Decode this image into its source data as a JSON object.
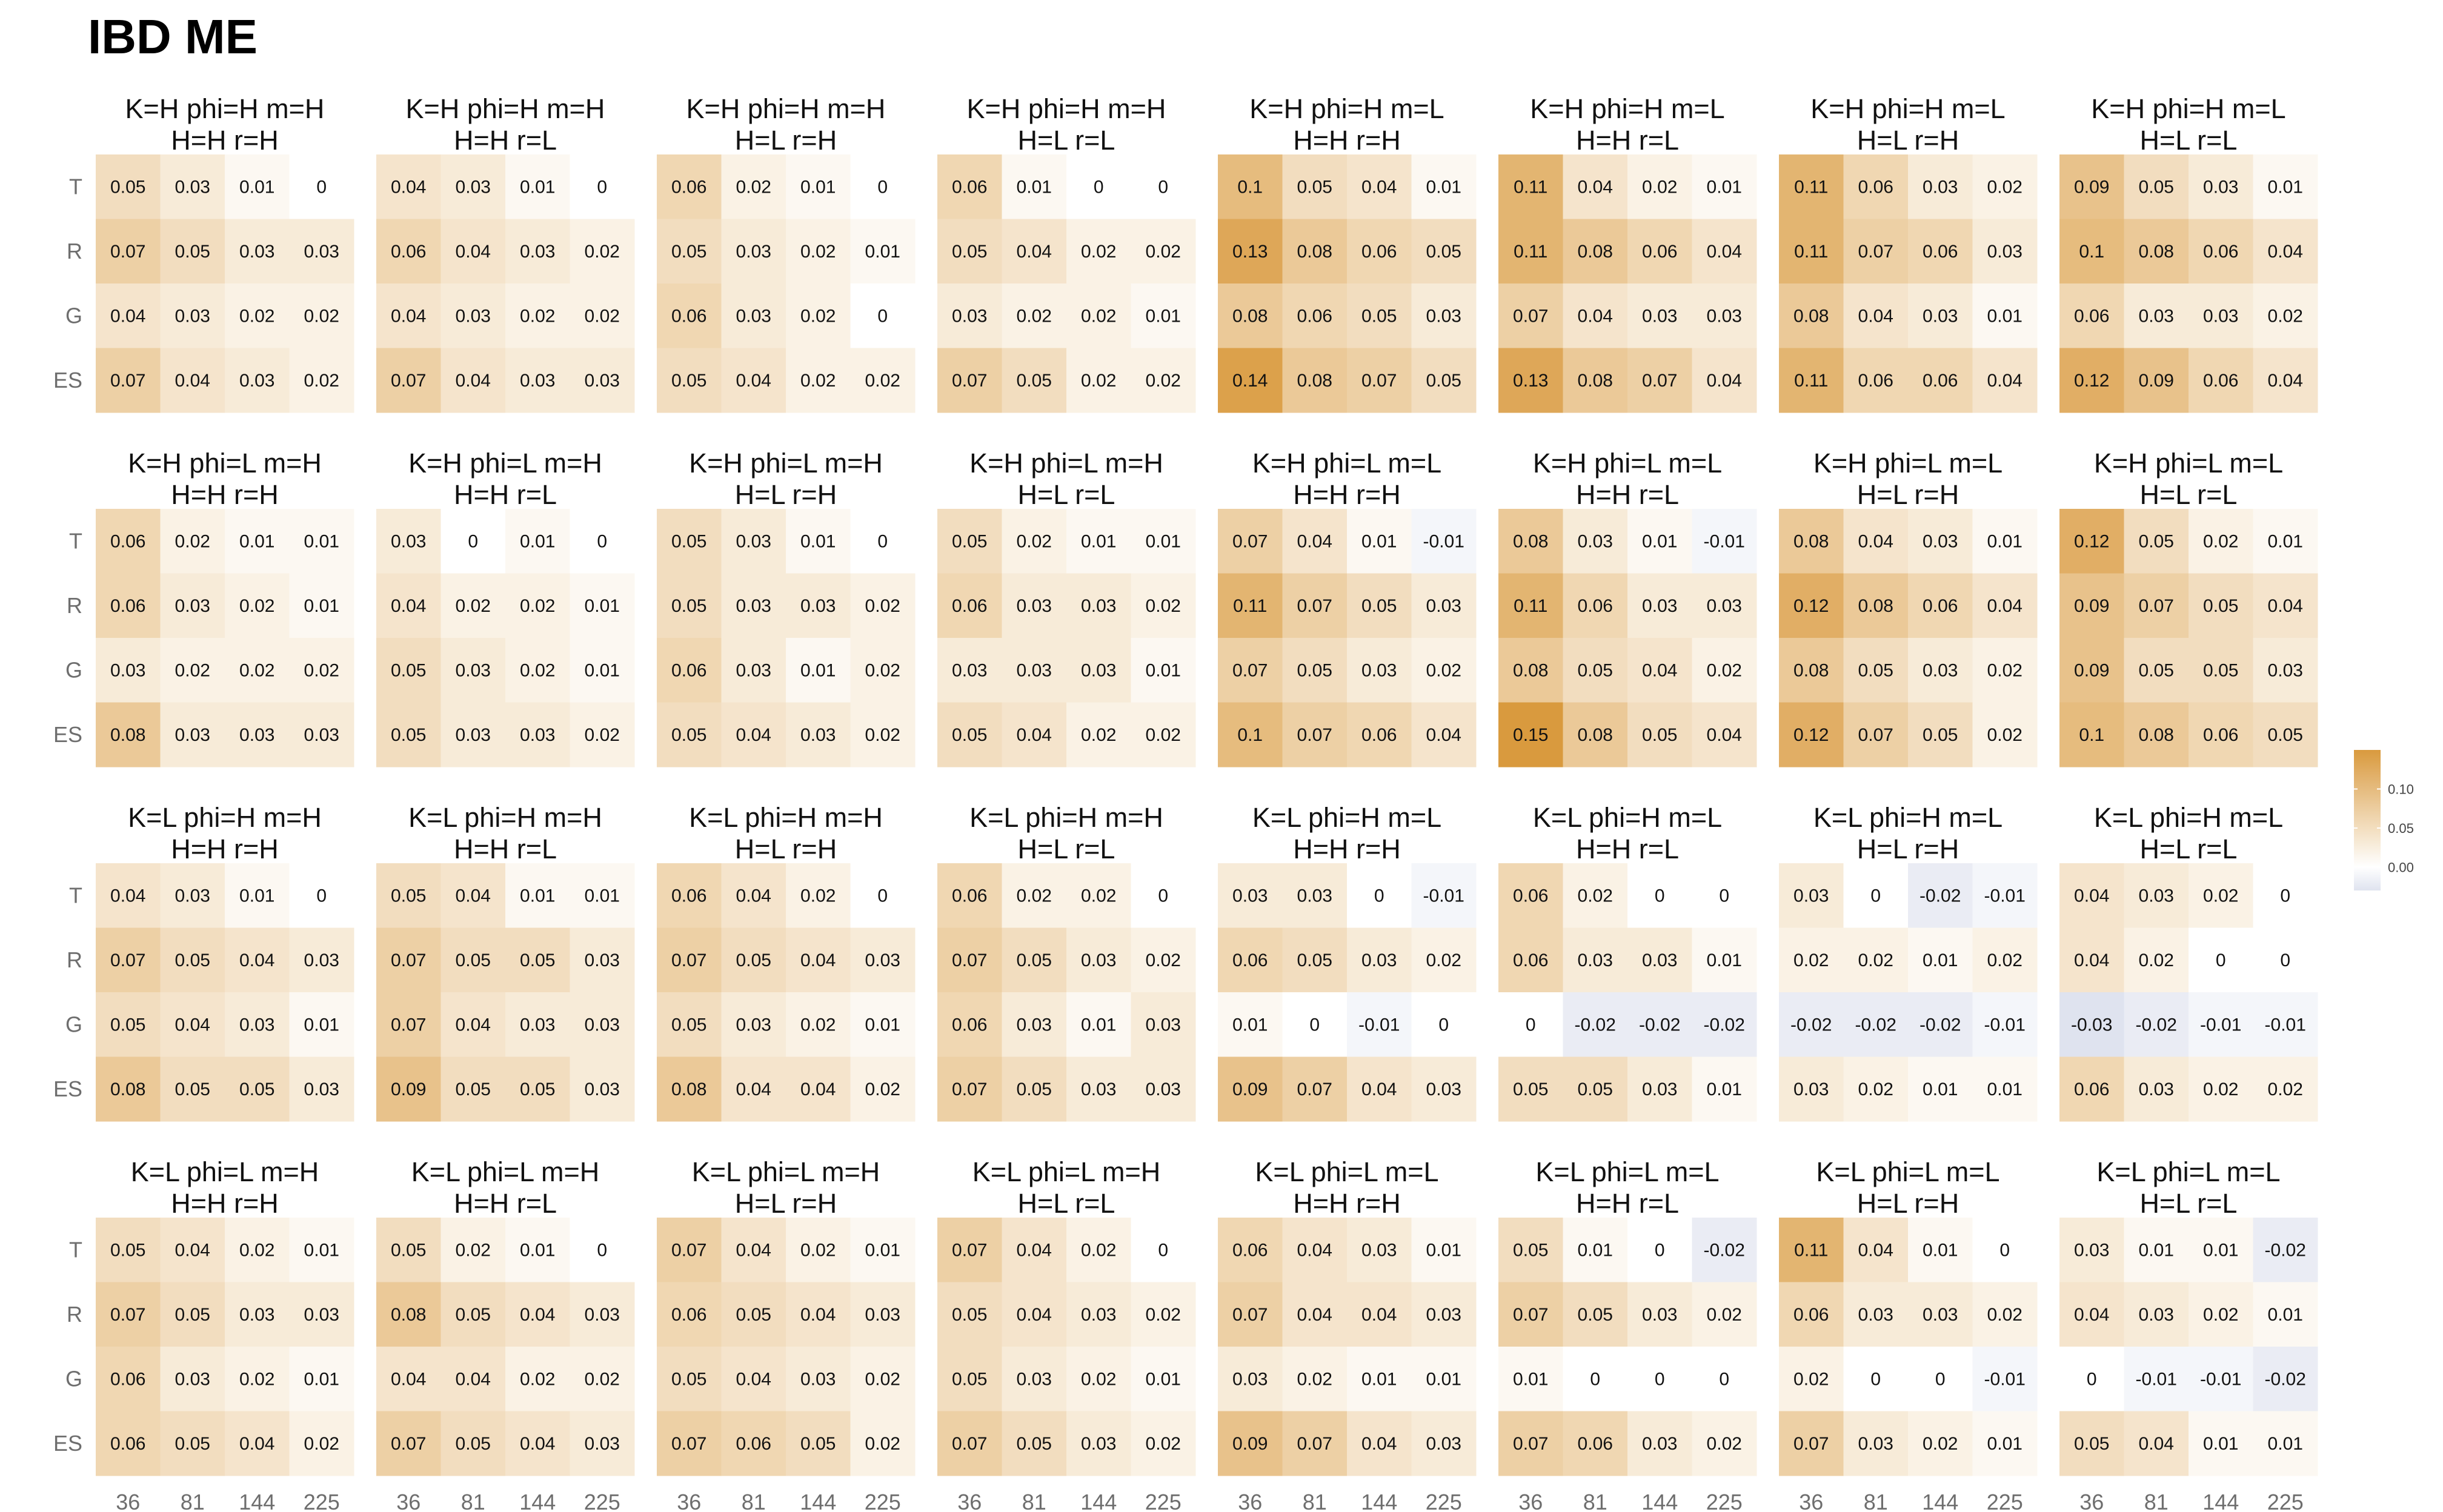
{
  "chart_data": {
    "type": "heatmap",
    "title": "IBD ME",
    "row_labels": [
      "T",
      "R",
      "G",
      "ES"
    ],
    "col_labels": [
      "36",
      "81",
      "144",
      "225"
    ],
    "color_scale": {
      "low": "#dfe3ef",
      "mid": "#ffffff",
      "high": "#d99a3e",
      "domain": [
        -0.03,
        0,
        0.15
      ]
    },
    "legend": {
      "ticks": [
        "0.10",
        "0.05",
        "0.00"
      ],
      "tick_values": [
        0.1,
        0.05,
        0.0
      ],
      "position": "right"
    },
    "facets": [
      {
        "title": [
          "K=H phi=H m=H",
          "H=H r=H"
        ],
        "values": [
          [
            0.05,
            0.03,
            0.01,
            0
          ],
          [
            0.07,
            0.05,
            0.03,
            0.03
          ],
          [
            0.04,
            0.03,
            0.02,
            0.02
          ],
          [
            0.07,
            0.04,
            0.03,
            0.02
          ]
        ]
      },
      {
        "title": [
          "K=H phi=H m=H",
          "H=H r=L"
        ],
        "values": [
          [
            0.04,
            0.03,
            0.01,
            0
          ],
          [
            0.06,
            0.04,
            0.03,
            0.02
          ],
          [
            0.04,
            0.03,
            0.02,
            0.02
          ],
          [
            0.07,
            0.04,
            0.03,
            0.03
          ]
        ]
      },
      {
        "title": [
          "K=H phi=H m=H",
          "H=L r=H"
        ],
        "values": [
          [
            0.06,
            0.02,
            0.01,
            0
          ],
          [
            0.05,
            0.03,
            0.02,
            0.01
          ],
          [
            0.06,
            0.03,
            0.02,
            0
          ],
          [
            0.05,
            0.04,
            0.02,
            0.02
          ]
        ]
      },
      {
        "title": [
          "K=H phi=H m=H",
          "H=L r=L"
        ],
        "values": [
          [
            0.06,
            0.01,
            0,
            0
          ],
          [
            0.05,
            0.04,
            0.02,
            0.02
          ],
          [
            0.03,
            0.02,
            0.02,
            0.01
          ],
          [
            0.07,
            0.05,
            0.02,
            0.02
          ]
        ]
      },
      {
        "title": [
          "K=H phi=H m=L",
          "H=H r=H"
        ],
        "values": [
          [
            0.1,
            0.05,
            0.04,
            0.01
          ],
          [
            0.13,
            0.08,
            0.06,
            0.05
          ],
          [
            0.08,
            0.06,
            0.05,
            0.03
          ],
          [
            0.14,
            0.08,
            0.07,
            0.05
          ]
        ]
      },
      {
        "title": [
          "K=H phi=H m=L",
          "H=H r=L"
        ],
        "values": [
          [
            0.11,
            0.04,
            0.02,
            0.01
          ],
          [
            0.11,
            0.08,
            0.06,
            0.04
          ],
          [
            0.07,
            0.04,
            0.03,
            0.03
          ],
          [
            0.13,
            0.08,
            0.07,
            0.04
          ]
        ]
      },
      {
        "title": [
          "K=H phi=H m=L",
          "H=L r=H"
        ],
        "values": [
          [
            0.11,
            0.06,
            0.03,
            0.02
          ],
          [
            0.11,
            0.07,
            0.06,
            0.03
          ],
          [
            0.08,
            0.04,
            0.03,
            0.01
          ],
          [
            0.11,
            0.06,
            0.06,
            0.04
          ]
        ]
      },
      {
        "title": [
          "K=H phi=H m=L",
          "H=L r=L"
        ],
        "values": [
          [
            0.09,
            0.05,
            0.03,
            0.01
          ],
          [
            0.1,
            0.08,
            0.06,
            0.04
          ],
          [
            0.06,
            0.03,
            0.03,
            0.02
          ],
          [
            0.12,
            0.09,
            0.06,
            0.04
          ]
        ]
      },
      {
        "title": [
          "K=H phi=L m=H",
          "H=H r=H"
        ],
        "values": [
          [
            0.06,
            0.02,
            0.01,
            0.01
          ],
          [
            0.06,
            0.03,
            0.02,
            0.01
          ],
          [
            0.03,
            0.02,
            0.02,
            0.02
          ],
          [
            0.08,
            0.03,
            0.03,
            0.03
          ]
        ]
      },
      {
        "title": [
          "K=H phi=L m=H",
          "H=H r=L"
        ],
        "values": [
          [
            0.03,
            0,
            0.01,
            0
          ],
          [
            0.04,
            0.02,
            0.02,
            0.01
          ],
          [
            0.05,
            0.03,
            0.02,
            0.01
          ],
          [
            0.05,
            0.03,
            0.03,
            0.02
          ]
        ]
      },
      {
        "title": [
          "K=H phi=L m=H",
          "H=L r=H"
        ],
        "values": [
          [
            0.05,
            0.03,
            0.01,
            0
          ],
          [
            0.05,
            0.03,
            0.03,
            0.02
          ],
          [
            0.06,
            0.03,
            0.01,
            0.02
          ],
          [
            0.05,
            0.04,
            0.03,
            0.02
          ]
        ]
      },
      {
        "title": [
          "K=H phi=L m=H",
          "H=L r=L"
        ],
        "values": [
          [
            0.05,
            0.02,
            0.01,
            0.01
          ],
          [
            0.06,
            0.03,
            0.03,
            0.02
          ],
          [
            0.03,
            0.03,
            0.03,
            0.01
          ],
          [
            0.05,
            0.04,
            0.02,
            0.02
          ]
        ]
      },
      {
        "title": [
          "K=H phi=L m=L",
          "H=H r=H"
        ],
        "values": [
          [
            0.07,
            0.04,
            0.01,
            -0.01
          ],
          [
            0.11,
            0.07,
            0.05,
            0.03
          ],
          [
            0.07,
            0.05,
            0.03,
            0.02
          ],
          [
            0.1,
            0.07,
            0.06,
            0.04
          ]
        ]
      },
      {
        "title": [
          "K=H phi=L m=L",
          "H=H r=L"
        ],
        "values": [
          [
            0.08,
            0.03,
            0.01,
            -0.01
          ],
          [
            0.11,
            0.06,
            0.03,
            0.03
          ],
          [
            0.08,
            0.05,
            0.04,
            0.02
          ],
          [
            0.15,
            0.08,
            0.05,
            0.04
          ]
        ]
      },
      {
        "title": [
          "K=H phi=L m=L",
          "H=L r=H"
        ],
        "values": [
          [
            0.08,
            0.04,
            0.03,
            0.01
          ],
          [
            0.12,
            0.08,
            0.06,
            0.04
          ],
          [
            0.08,
            0.05,
            0.03,
            0.02
          ],
          [
            0.12,
            0.07,
            0.05,
            0.02
          ]
        ]
      },
      {
        "title": [
          "K=H phi=L m=L",
          "H=L r=L"
        ],
        "values": [
          [
            0.12,
            0.05,
            0.02,
            0.01
          ],
          [
            0.09,
            0.07,
            0.05,
            0.04
          ],
          [
            0.09,
            0.05,
            0.05,
            0.03
          ],
          [
            0.1,
            0.08,
            0.06,
            0.05
          ]
        ]
      },
      {
        "title": [
          "K=L phi=H m=H",
          "H=H r=H"
        ],
        "values": [
          [
            0.04,
            0.03,
            0.01,
            0
          ],
          [
            0.07,
            0.05,
            0.04,
            0.03
          ],
          [
            0.05,
            0.04,
            0.03,
            0.01
          ],
          [
            0.08,
            0.05,
            0.05,
            0.03
          ]
        ]
      },
      {
        "title": [
          "K=L phi=H m=H",
          "H=H r=L"
        ],
        "values": [
          [
            0.05,
            0.04,
            0.01,
            0.01
          ],
          [
            0.07,
            0.05,
            0.05,
            0.03
          ],
          [
            0.07,
            0.04,
            0.03,
            0.03
          ],
          [
            0.09,
            0.05,
            0.05,
            0.03
          ]
        ]
      },
      {
        "title": [
          "K=L phi=H m=H",
          "H=L r=H"
        ],
        "values": [
          [
            0.06,
            0.04,
            0.02,
            0
          ],
          [
            0.07,
            0.05,
            0.04,
            0.03
          ],
          [
            0.05,
            0.03,
            0.02,
            0.01
          ],
          [
            0.08,
            0.04,
            0.04,
            0.02
          ]
        ]
      },
      {
        "title": [
          "K=L phi=H m=H",
          "H=L r=L"
        ],
        "values": [
          [
            0.06,
            0.02,
            0.02,
            0
          ],
          [
            0.07,
            0.05,
            0.03,
            0.02
          ],
          [
            0.06,
            0.03,
            0.01,
            0.03
          ],
          [
            0.07,
            0.05,
            0.03,
            0.03
          ]
        ]
      },
      {
        "title": [
          "K=L phi=H m=L",
          "H=H r=H"
        ],
        "values": [
          [
            0.03,
            0.03,
            0,
            -0.01
          ],
          [
            0.06,
            0.05,
            0.03,
            0.02
          ],
          [
            0.01,
            0,
            -0.01,
            0
          ],
          [
            0.09,
            0.07,
            0.04,
            0.03
          ]
        ]
      },
      {
        "title": [
          "K=L phi=H m=L",
          "H=H r=L"
        ],
        "values": [
          [
            0.06,
            0.02,
            0,
            0
          ],
          [
            0.06,
            0.03,
            0.03,
            0.01
          ],
          [
            0,
            -0.02,
            -0.02,
            -0.02
          ],
          [
            0.05,
            0.05,
            0.03,
            0.01
          ]
        ]
      },
      {
        "title": [
          "K=L phi=H m=L",
          "H=L r=H"
        ],
        "values": [
          [
            0.03,
            0,
            -0.02,
            -0.01
          ],
          [
            0.02,
            0.02,
            0.01,
            0.02
          ],
          [
            -0.02,
            -0.02,
            -0.02,
            -0.01
          ],
          [
            0.03,
            0.02,
            0.01,
            0.01
          ]
        ]
      },
      {
        "title": [
          "K=L phi=H m=L",
          "H=L r=L"
        ],
        "values": [
          [
            0.04,
            0.03,
            0.02,
            0
          ],
          [
            0.04,
            0.02,
            0,
            0
          ],
          [
            -0.03,
            -0.02,
            -0.01,
            -0.01
          ],
          [
            0.06,
            0.03,
            0.02,
            0.02
          ]
        ]
      },
      {
        "title": [
          "K=L phi=L m=H",
          "H=H r=H"
        ],
        "values": [
          [
            0.05,
            0.04,
            0.02,
            0.01
          ],
          [
            0.07,
            0.05,
            0.03,
            0.03
          ],
          [
            0.06,
            0.03,
            0.02,
            0.01
          ],
          [
            0.06,
            0.05,
            0.04,
            0.02
          ]
        ]
      },
      {
        "title": [
          "K=L phi=L m=H",
          "H=H r=L"
        ],
        "values": [
          [
            0.05,
            0.02,
            0.01,
            0
          ],
          [
            0.08,
            0.05,
            0.04,
            0.03
          ],
          [
            0.04,
            0.04,
            0.02,
            0.02
          ],
          [
            0.07,
            0.05,
            0.04,
            0.03
          ]
        ]
      },
      {
        "title": [
          "K=L phi=L m=H",
          "H=L r=H"
        ],
        "values": [
          [
            0.07,
            0.04,
            0.02,
            0.01
          ],
          [
            0.06,
            0.05,
            0.04,
            0.03
          ],
          [
            0.05,
            0.04,
            0.03,
            0.02
          ],
          [
            0.07,
            0.06,
            0.05,
            0.02
          ]
        ]
      },
      {
        "title": [
          "K=L phi=L m=H",
          "H=L r=L"
        ],
        "values": [
          [
            0.07,
            0.04,
            0.02,
            0
          ],
          [
            0.05,
            0.04,
            0.03,
            0.02
          ],
          [
            0.05,
            0.03,
            0.02,
            0.01
          ],
          [
            0.07,
            0.05,
            0.03,
            0.02
          ]
        ]
      },
      {
        "title": [
          "K=L phi=L m=L",
          "H=H r=H"
        ],
        "values": [
          [
            0.06,
            0.04,
            0.03,
            0.01
          ],
          [
            0.07,
            0.04,
            0.04,
            0.03
          ],
          [
            0.03,
            0.02,
            0.01,
            0.01
          ],
          [
            0.09,
            0.07,
            0.04,
            0.03
          ]
        ]
      },
      {
        "title": [
          "K=L phi=L m=L",
          "H=H r=L"
        ],
        "values": [
          [
            0.05,
            0.01,
            0,
            -0.02
          ],
          [
            0.07,
            0.05,
            0.03,
            0.02
          ],
          [
            0.01,
            0,
            0,
            0
          ],
          [
            0.07,
            0.06,
            0.03,
            0.02
          ]
        ]
      },
      {
        "title": [
          "K=L phi=L m=L",
          "H=L r=H"
        ],
        "values": [
          [
            0.11,
            0.04,
            0.01,
            0
          ],
          [
            0.06,
            0.03,
            0.03,
            0.02
          ],
          [
            0.02,
            0,
            0,
            -0.01
          ],
          [
            0.07,
            0.03,
            0.02,
            0.01
          ]
        ]
      },
      {
        "title": [
          "K=L phi=L m=L",
          "H=L r=L"
        ],
        "values": [
          [
            0.03,
            0.01,
            0.01,
            -0.02
          ],
          [
            0.04,
            0.03,
            0.02,
            0.01
          ],
          [
            0,
            -0.01,
            -0.01,
            -0.02
          ],
          [
            0.05,
            0.04,
            0.01,
            0.01
          ]
        ]
      }
    ]
  }
}
